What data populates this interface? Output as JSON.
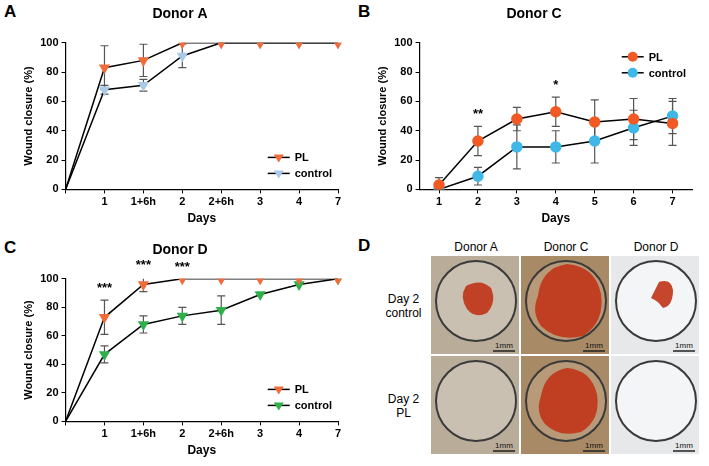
{
  "chart_data": [
    {
      "panel_label": "A",
      "type": "line",
      "title": "Donor A",
      "x_label": "Days",
      "y_label": "Wound closure (%)",
      "categories": [
        null,
        "1",
        "1+6h",
        "2",
        "2+6h",
        "3",
        "4",
        "7"
      ],
      "series": [
        {
          "name": "PL",
          "color": "#f26b38",
          "marker": "triangle_down",
          "values": [
            0,
            83,
            88,
            100,
            100,
            100,
            100,
            100
          ],
          "errors": [
            0,
            15,
            11,
            0,
            0,
            0,
            0,
            0
          ]
        },
        {
          "name": "control",
          "color": "#a9cbe9",
          "marker": "triangle_down",
          "values": [
            0,
            68,
            71,
            91,
            100,
            100,
            100,
            100
          ],
          "errors": [
            0,
            3,
            4,
            8,
            0,
            0,
            0,
            0
          ]
        }
      ],
      "ylim": [
        0,
        100
      ],
      "yticks": [
        0,
        20,
        40,
        60,
        80,
        100
      ],
      "grid": false,
      "legend": "lower right",
      "annotations": []
    },
    {
      "panel_label": "B",
      "type": "line",
      "title": "Donor C",
      "x_label": "Days",
      "y_label": "Wound closure (%)",
      "categories": [
        "1",
        "2",
        "3",
        "4",
        "5",
        "6",
        "7"
      ],
      "series": [
        {
          "name": "PL",
          "color": "#f15a24",
          "marker": "circle",
          "values": [
            3,
            33,
            48,
            53,
            46,
            48,
            45
          ],
          "errors": [
            5,
            10,
            8,
            10,
            15,
            14,
            15
          ]
        },
        {
          "name": "control",
          "color": "#3fb8e8",
          "marker": "circle",
          "values": [
            0,
            9,
            29,
            29,
            33,
            42,
            50
          ],
          "errors": [
            2,
            6,
            15,
            11,
            15,
            12,
            12
          ]
        }
      ],
      "ylim": [
        0,
        100
      ],
      "yticks": [
        0,
        20,
        40,
        60,
        80,
        100
      ],
      "grid": false,
      "legend": "upper right",
      "annotations": [
        {
          "category": "2",
          "text": "**"
        },
        {
          "category": "4",
          "text": "*"
        }
      ]
    },
    {
      "panel_label": "C",
      "type": "line",
      "title": "Donor D",
      "x_label": "Days",
      "y_label": "Wound closure (%)",
      "categories": [
        null,
        "1",
        "1+6h",
        "2",
        "2+6h",
        "3",
        "4",
        "7"
      ],
      "series": [
        {
          "name": "PL",
          "color": "#f26b38",
          "marker": "triangle_down",
          "values": [
            0,
            73,
            96,
            100,
            100,
            100,
            100,
            100
          ],
          "errors": [
            0,
            12,
            5,
            0,
            0,
            0,
            0,
            0
          ]
        },
        {
          "name": "control",
          "color": "#2eb04b",
          "marker": "triangle_down",
          "values": [
            0,
            47,
            68,
            74,
            78,
            89,
            96,
            100
          ],
          "errors": [
            0,
            6,
            6,
            6,
            10,
            0,
            0,
            0
          ]
        }
      ],
      "ylim": [
        0,
        100
      ],
      "yticks": [
        0,
        20,
        40,
        60,
        80,
        100
      ],
      "grid": false,
      "legend": "lower right",
      "annotations": [
        {
          "category": "1",
          "text": "***"
        },
        {
          "category": "1+6h",
          "text": "***"
        },
        {
          "category": "2",
          "text": "***"
        }
      ]
    }
  ],
  "image_panel": {
    "panel_label": "D",
    "columns": [
      "Donor A",
      "Donor C",
      "Donor D"
    ],
    "rows": [
      "Day 2 control",
      "Day 2 PL"
    ],
    "scale_bar": "1mm",
    "wound": [
      [
        true,
        true,
        true
      ],
      [
        false,
        true,
        false
      ]
    ]
  }
}
